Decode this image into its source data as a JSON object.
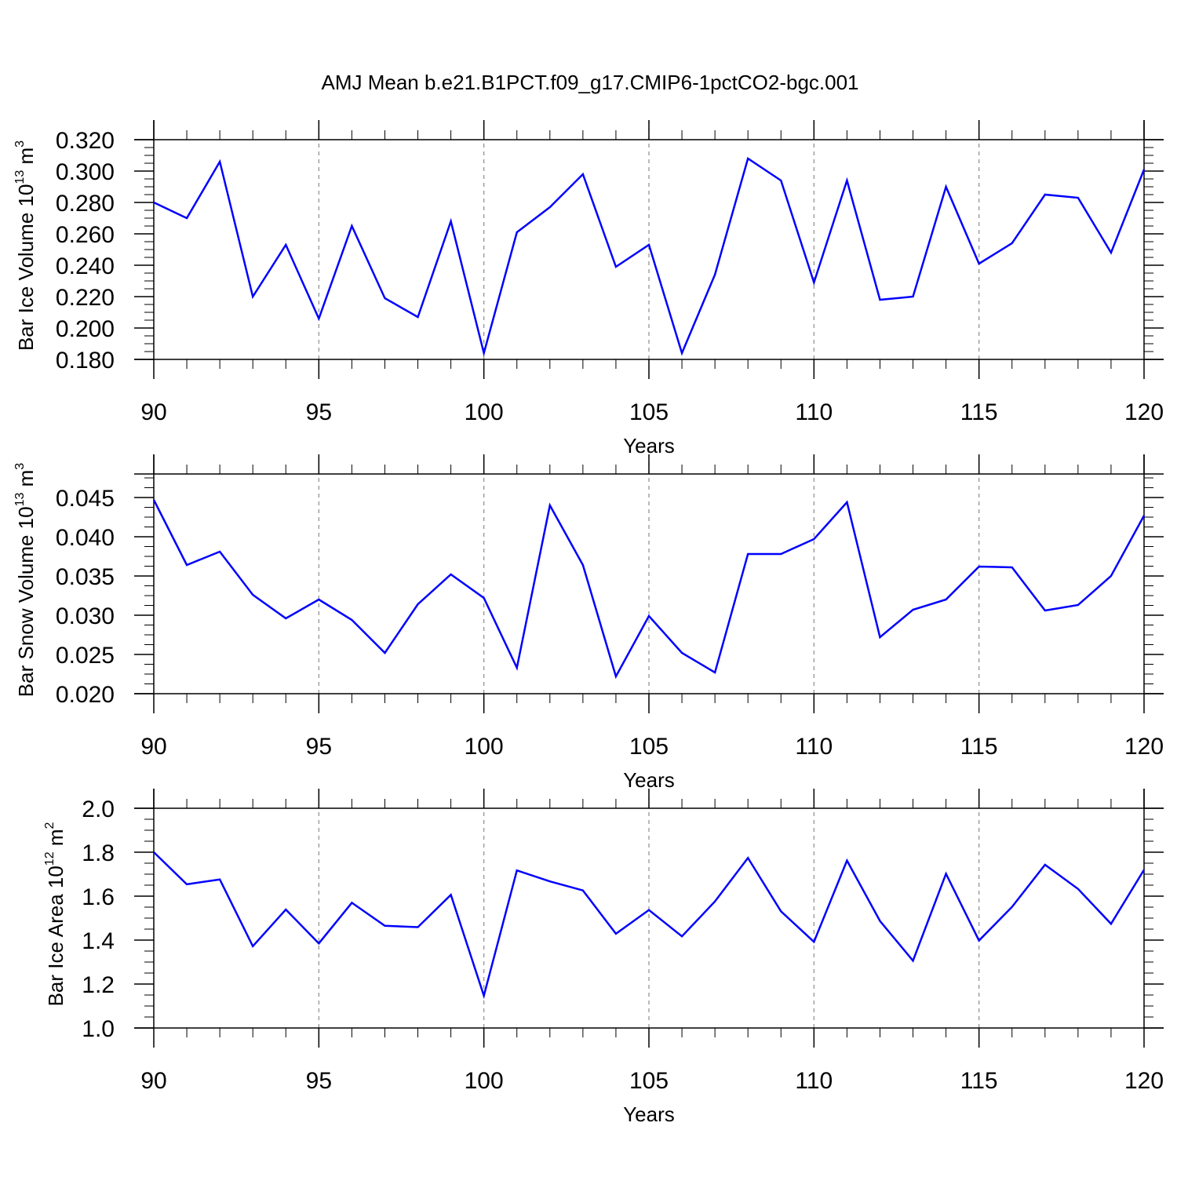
{
  "page": {
    "title": "AMJ Mean b.e21.B1PCT.f09_g17.CMIP6-1pctCO2-bgc.001"
  },
  "colors": {
    "series": "#0000ff",
    "axis": "#000000",
    "grid": "#8c8c8c",
    "background": "#ffffff"
  },
  "chart_data": [
    {
      "type": "line",
      "xlabel": "Years",
      "ylabel": {
        "prefix": "Bar Ice Volume 10",
        "exponent": "13",
        "unit": " m",
        "unit_exponent": "3"
      },
      "xlim": [
        90,
        120
      ],
      "ylim": [
        0.18,
        0.32
      ],
      "x_ticks": [
        "90",
        "95",
        "100",
        "105",
        "110",
        "115",
        "120"
      ],
      "y_ticks": [
        "0.180",
        "0.200",
        "0.220",
        "0.240",
        "0.260",
        "0.280",
        "0.300",
        "0.320"
      ],
      "grid": "vertical dashed at major x ticks",
      "x": [
        90,
        91,
        92,
        93,
        94,
        95,
        96,
        97,
        98,
        99,
        100,
        101,
        102,
        103,
        104,
        105,
        106,
        107,
        108,
        109,
        110,
        111,
        112,
        113,
        114,
        115,
        116,
        117,
        118,
        119,
        120
      ],
      "series": [
        {
          "values": [
            0.28,
            0.27,
            0.306,
            0.22,
            0.253,
            0.206,
            0.265,
            0.219,
            0.207,
            0.268,
            0.184,
            0.261,
            0.277,
            0.298,
            0.239,
            0.253,
            0.184,
            0.234,
            0.308,
            0.294,
            0.229,
            0.294,
            0.218,
            0.22,
            0.29,
            0.241,
            0.254,
            0.285,
            0.283,
            0.248,
            0.301
          ]
        }
      ]
    },
    {
      "type": "line",
      "xlabel": "Years",
      "ylabel": {
        "prefix": "Bar Snow Volume 10",
        "exponent": "13",
        "unit": " m",
        "unit_exponent": "3"
      },
      "xlim": [
        90,
        120
      ],
      "ylim": [
        0.02,
        0.048
      ],
      "x_ticks": [
        "90",
        "95",
        "100",
        "105",
        "110",
        "115",
        "120"
      ],
      "y_ticks": [
        "0.020",
        "0.025",
        "0.030",
        "0.035",
        "0.040",
        "0.045"
      ],
      "grid": "vertical dashed at major x ticks",
      "x": [
        90,
        91,
        92,
        93,
        94,
        95,
        96,
        97,
        98,
        99,
        100,
        101,
        102,
        103,
        104,
        105,
        106,
        107,
        108,
        109,
        110,
        111,
        112,
        113,
        114,
        115,
        116,
        117,
        118,
        119,
        120
      ],
      "series": [
        {
          "values": [
            0.0447,
            0.0364,
            0.0381,
            0.0326,
            0.0296,
            0.032,
            0.0294,
            0.0252,
            0.0314,
            0.0352,
            0.0322,
            0.0233,
            0.044,
            0.0364,
            0.0222,
            0.0299,
            0.0252,
            0.0227,
            0.0378,
            0.0378,
            0.0397,
            0.0444,
            0.0272,
            0.0307,
            0.032,
            0.0362,
            0.0361,
            0.0306,
            0.0313,
            0.035,
            0.0427
          ]
        }
      ]
    },
    {
      "type": "line",
      "xlabel": "Years",
      "ylabel": {
        "prefix": "Bar Ice Area 10",
        "exponent": "12",
        "unit": " m",
        "unit_exponent": "2"
      },
      "xlim": [
        90,
        120
      ],
      "ylim": [
        1.0,
        2.0
      ],
      "x_ticks": [
        "90",
        "95",
        "100",
        "105",
        "110",
        "115",
        "120"
      ],
      "y_ticks": [
        "1.0",
        "1.2",
        "1.4",
        "1.6",
        "1.8",
        "2.0"
      ],
      "grid": "vertical dashed at major x ticks",
      "x": [
        90,
        91,
        92,
        93,
        94,
        95,
        96,
        97,
        98,
        99,
        100,
        101,
        102,
        103,
        104,
        105,
        106,
        107,
        108,
        109,
        110,
        111,
        112,
        113,
        114,
        115,
        116,
        117,
        118,
        119,
        120
      ],
      "series": [
        {
          "values": [
            1.8,
            1.654,
            1.676,
            1.372,
            1.539,
            1.385,
            1.57,
            1.465,
            1.459,
            1.606,
            1.147,
            1.717,
            1.667,
            1.626,
            1.429,
            1.537,
            1.417,
            1.576,
            1.774,
            1.531,
            1.392,
            1.762,
            1.487,
            1.306,
            1.702,
            1.398,
            1.551,
            1.743,
            1.633,
            1.474,
            1.72
          ]
        }
      ]
    }
  ]
}
